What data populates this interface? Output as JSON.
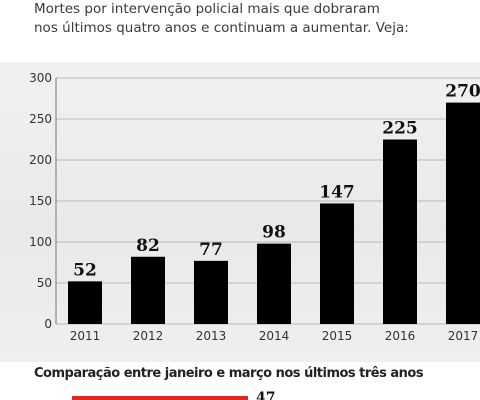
{
  "intro": {
    "line1": "Mortes por intervenção policial mais que dobraram",
    "line2": "nos últimos quatro anos e continuam a aumentar. Veja:"
  },
  "chart_data": {
    "type": "bar",
    "categories": [
      "2011",
      "2012",
      "2013",
      "2014",
      "2015",
      "2016",
      "2017"
    ],
    "values": [
      52,
      82,
      77,
      98,
      147,
      225,
      270
    ],
    "ylim": [
      0,
      300
    ],
    "yticks": [
      0,
      50,
      100,
      150,
      200,
      250,
      300
    ],
    "title": "",
    "xlabel": "",
    "ylabel": "",
    "grid": true,
    "bar_color": "#000000",
    "grid_color": "#b9b9b9"
  },
  "footer": {
    "title": "Comparação entre janeiro e março nos últimos três anos",
    "first_bar_label": "47",
    "first_bar_color": "#e02424"
  }
}
